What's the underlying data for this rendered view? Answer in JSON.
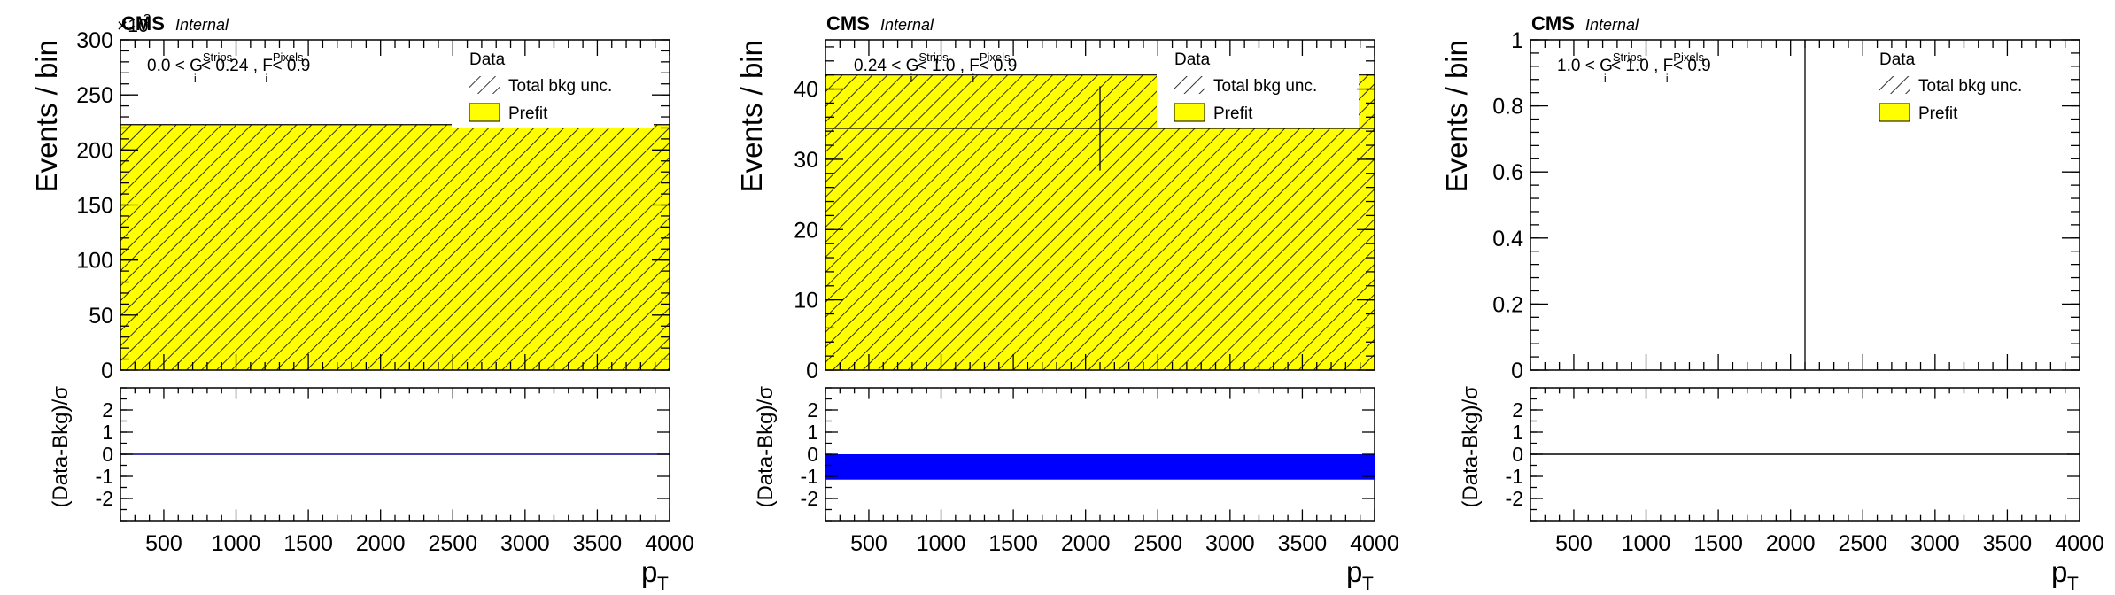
{
  "chart_data": [
    {
      "type": "bar",
      "experiment": "CMS",
      "status": "Internal",
      "region_label": "0.0 < G_i^Strips < 0.24 , F_i^Pixels < 0.9",
      "region_parts": [
        "0.0 < G",
        "Strips",
        "i",
        " < 0.24 , F",
        "Pixels",
        "i",
        " < 0.9"
      ],
      "x_label": "p",
      "x_label_sub": "T",
      "xlim": [
        200,
        4000
      ],
      "x_ticks": [
        500,
        1000,
        1500,
        2000,
        2500,
        3000,
        3500,
        4000
      ],
      "y_label": "Events / bin",
      "ylim": [
        0,
        300
      ],
      "y_ticks": [
        0,
        50,
        100,
        150,
        200,
        250,
        300
      ],
      "y_multiplier": "×10",
      "y_multiplier_exp": "3",
      "legend": [
        "Data",
        "Total bkg unc.",
        "Prefit"
      ],
      "bins": [
        200,
        4000
      ],
      "prefit_bkg": [
        223
      ],
      "data_points": [],
      "ratio": {
        "y_label": "(Data-Bkg)/σ",
        "ylim": [
          -3,
          3
        ],
        "y_ticks": [
          2,
          1,
          0,
          -1,
          -2
        ],
        "values": [
          0
        ],
        "line_color": "#00008b"
      }
    },
    {
      "type": "bar",
      "experiment": "CMS",
      "status": "Internal",
      "region_label": "0.24 < G_i^Strips < 1.0 , F_i^Pixels < 0.9",
      "region_parts": [
        "0.24 < G",
        "Strips",
        "i",
        " < 1.0 , F",
        "Pixels",
        "i",
        " < 0.9"
      ],
      "x_label": "p",
      "x_label_sub": "T",
      "xlim": [
        200,
        4000
      ],
      "x_ticks": [
        500,
        1000,
        1500,
        2000,
        2500,
        3000,
        3500,
        4000
      ],
      "y_label": "Events / bin",
      "ylim": [
        0,
        47
      ],
      "y_ticks": [
        0,
        10,
        20,
        30,
        40
      ],
      "y_multiplier": "",
      "y_multiplier_exp": "",
      "legend": [
        "Data",
        "Total bkg unc.",
        "Prefit"
      ],
      "bins": [
        200,
        4000
      ],
      "prefit_bkg": [
        42
      ],
      "data_points": [
        {
          "x": 2100,
          "y": 34.4,
          "xerr": [
            200,
            4000
          ],
          "yerr": [
            6,
            6
          ]
        }
      ],
      "ratio": {
        "y_label": "(Data-Bkg)/σ",
        "ylim": [
          -3,
          3
        ],
        "y_ticks": [
          2,
          1,
          0,
          -1,
          -2
        ],
        "values": [
          -1.15
        ],
        "bar_color": "#0000ff"
      }
    },
    {
      "type": "bar",
      "experiment": "CMS",
      "status": "Internal",
      "region_label": "1.0 < G_i^Strips < 1.0 , F_i^Pixels < 0.9",
      "region_parts": [
        "1.0 < G",
        "Strips",
        "i",
        " < 1.0 , F",
        "Pixels",
        "i",
        " < 0.9"
      ],
      "x_label": "p",
      "x_label_sub": "T",
      "xlim": [
        200,
        4000
      ],
      "x_ticks": [
        500,
        1000,
        1500,
        2000,
        2500,
        3000,
        3500,
        4000
      ],
      "y_label": "Events / bin",
      "ylim": [
        0,
        1
      ],
      "y_ticks": [
        0,
        0.2,
        0.4,
        0.6,
        0.8,
        1
      ],
      "y_multiplier": "",
      "y_multiplier_exp": "",
      "legend": [
        "Data",
        "Total bkg unc.",
        "Prefit"
      ],
      "bins": [
        200,
        4000
      ],
      "prefit_bkg": [
        0
      ],
      "data_points": [
        {
          "x": 2100,
          "y": 0,
          "xerr": [
            2100,
            2100
          ],
          "yerr": [
            0,
            1
          ]
        }
      ],
      "ratio": {
        "y_label": "(Data-Bkg)/σ",
        "ylim": [
          -3,
          3
        ],
        "y_ticks": [
          2,
          1,
          0,
          -1,
          -2
        ],
        "values": [
          0
        ],
        "line_color": "#000000"
      }
    }
  ],
  "colors": {
    "prefit_fill": "#ffff00",
    "hatch": "#000000",
    "frame": "#000000"
  }
}
